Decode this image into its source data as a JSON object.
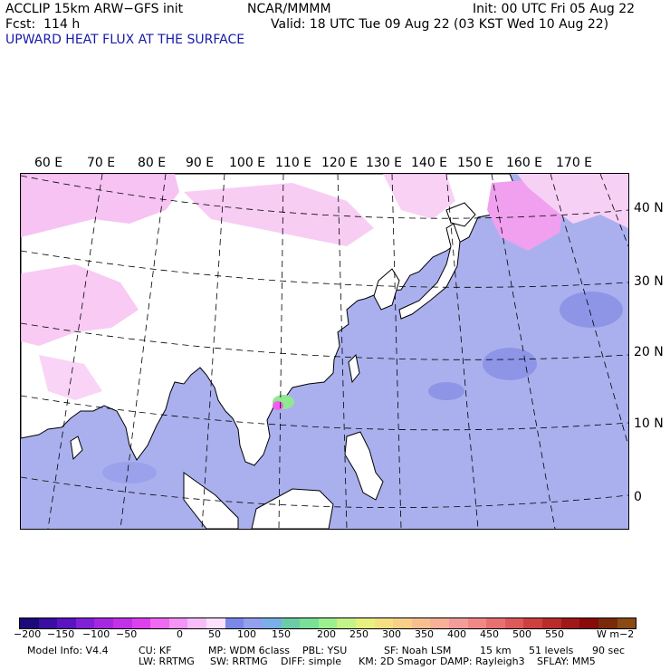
{
  "header": {
    "model": "ACCLIP 15km ARW−GFS init",
    "org": "NCAR/MMMM",
    "init": "Init: 00 UTC Fri 05 Aug 22",
    "fcst": "Fcst:  114 h",
    "valid": "Valid: 18 UTC Tue 09 Aug 22 (03 KST Wed 10 Aug 22)",
    "field": "UPWARD HEAT FLUX AT THE SURFACE"
  },
  "map": {
    "lon_labels": [
      "60 E",
      "70 E",
      "80 E",
      "90 E",
      "100 E",
      "110 E",
      "120 E",
      "130 E",
      "140 E",
      "150 E",
      "160 E",
      "170 E"
    ],
    "lat_labels": [
      "40 N",
      "30 N",
      "20 N",
      "10 N",
      "0"
    ],
    "colors": {
      "ocean": "#aab0ee",
      "land": "#ffffff",
      "land_pink": "#f5b8f0",
      "hot_pink": "#f080f0",
      "green": "#90e890"
    }
  },
  "colorbar": {
    "labels": [
      "−200",
      "−150",
      "−100",
      "−50",
      "0",
      "50",
      "100",
      "150",
      "200",
      "250",
      "300",
      "350",
      "400",
      "450",
      "500",
      "550"
    ],
    "unit": "W m−2"
  },
  "model_info": {
    "line1": [
      {
        "k": "Model Info: V4.4"
      },
      {
        "k": "CU: KF"
      },
      {
        "k": "MP: WDM 6class"
      },
      {
        "k": "PBL: YSU"
      },
      {
        "k": "SF: Noah LSM"
      },
      {
        "k": "15 km"
      },
      {
        "k": "51 levels"
      },
      {
        "k": "90 sec"
      }
    ],
    "line2": [
      {
        "k": "LW: RRTMG"
      },
      {
        "k": "SW: RRTMG"
      },
      {
        "k": "DIFF: simple"
      },
      {
        "k": "KM: 2D Smagor"
      },
      {
        "k": "DAMP: Rayleigh3"
      },
      {
        "k": "SFLAY: MM5"
      }
    ]
  }
}
